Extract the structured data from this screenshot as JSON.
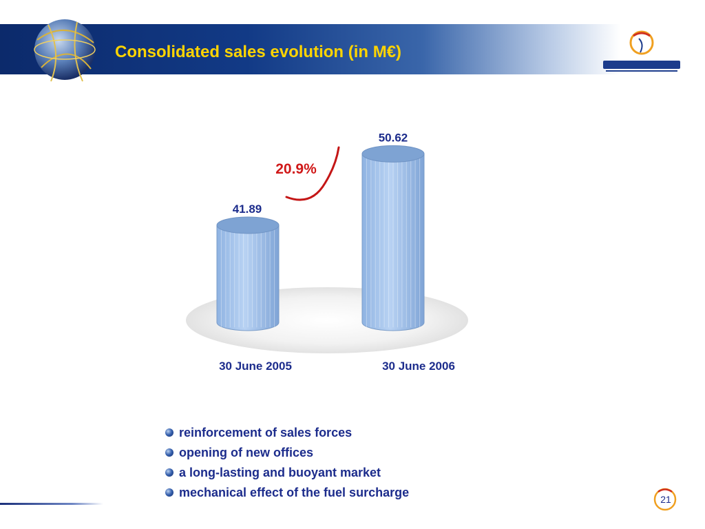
{
  "slide": {
    "title": "Consolidated sales evolution (in M€)",
    "page_number": "21",
    "bullets": [
      "reinforcement of sales forces",
      "opening of new offices",
      "a long-lasting and buoyant market",
      "mechanical effect of the fuel surcharge"
    ]
  },
  "chart_data": {
    "type": "bar",
    "categories": [
      "30 June 2005",
      "30 June 2006"
    ],
    "values": [
      41.89,
      50.62
    ],
    "value_labels": [
      "41.89",
      "50.62"
    ],
    "growth_label": "20.9%",
    "ylim": [
      30,
      52
    ],
    "grid": false,
    "legend": "none"
  },
  "colors": {
    "title": "#ffd400",
    "header_dark": "#0c2a6b",
    "bar_fill": "#9ec0ea",
    "bar_top": "#7ea3d3",
    "labels": "#1c2c8c",
    "growth": "#d01818"
  }
}
